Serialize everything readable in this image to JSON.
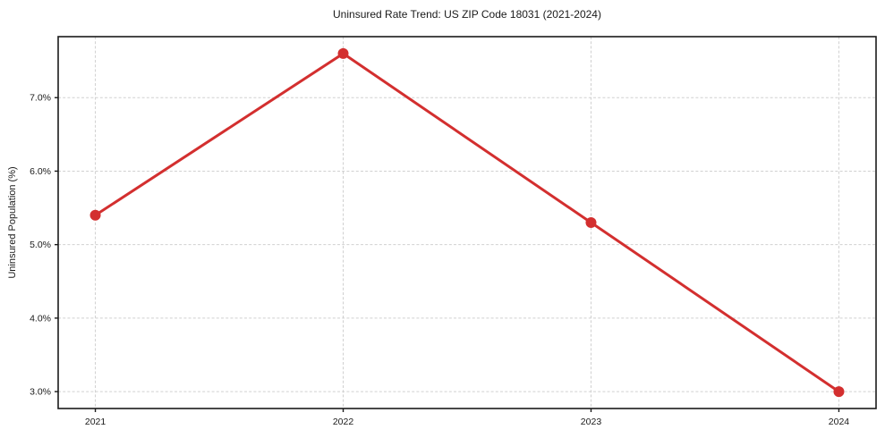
{
  "page": {
    "background_color": "#ffffff"
  },
  "chart_data": {
    "type": "line",
    "title": "Uninsured Rate Trend: US ZIP Code 18031 (2021-2024)",
    "xlabel": "",
    "ylabel": "Uninsured Population (%)",
    "x": [
      2021,
      2022,
      2023,
      2024
    ],
    "x_tick_labels": [
      "2021",
      "2022",
      "2023",
      "2024"
    ],
    "series": [
      {
        "name": "Uninsured rate",
        "values": [
          5.4,
          7.6,
          5.3,
          3.0
        ]
      }
    ],
    "y_ticks": [
      3.0,
      4.0,
      5.0,
      6.0,
      7.0
    ],
    "y_tick_labels": [
      "3.0%",
      "4.0%",
      "5.0%",
      "6.0%",
      "7.0%"
    ],
    "xlim": [
      2020.85,
      2024.15
    ],
    "ylim": [
      2.77,
      7.83
    ],
    "grid": true,
    "legend": "none",
    "line_color": "#d32f2f",
    "marker": "circle",
    "grid_color": "#d0d0d0",
    "spine_color": "#1a1a1a",
    "text_color": "#1a1a1a"
  }
}
